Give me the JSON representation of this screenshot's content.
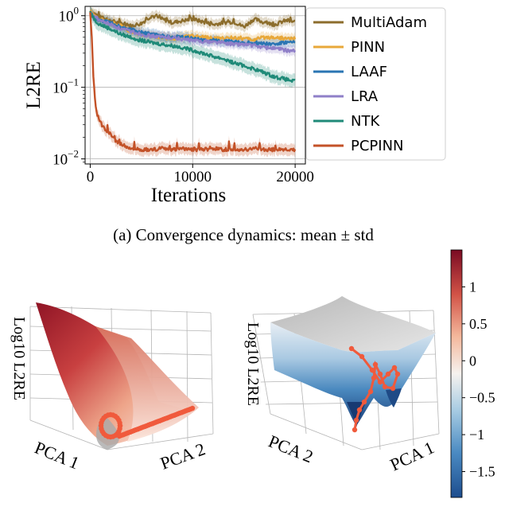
{
  "chart_data": [
    {
      "type": "line",
      "ylabel": "L2RE",
      "xlabel": "Iterations",
      "yscale": "log",
      "xlim": [
        -500,
        21000
      ],
      "ylim": [
        0.0085,
        1.35
      ],
      "xticks": [
        0,
        10000,
        20000
      ],
      "xtick_labels": [
        "0",
        "10000",
        "20000"
      ],
      "ytick_labels": [
        {
          "base": "10",
          "exp": "0",
          "value": 1
        },
        {
          "base": "10",
          "exp": "−1",
          "value": 0.1
        },
        {
          "base": "10",
          "exp": "−2",
          "value": 0.01
        }
      ],
      "grid": true,
      "legend_position": "outside-right",
      "shaded_band": "mean ± std",
      "series": [
        {
          "name": "MultiAdam",
          "color": "#8c6d2c",
          "x": [
            0,
            500,
            1000,
            2000,
            3000,
            4000,
            5000,
            6000,
            7000,
            8000,
            9000,
            10000,
            11000,
            12000,
            13000,
            14000,
            15000,
            16000,
            17000,
            18000,
            19000,
            20000
          ],
          "y": [
            1.15,
            1.05,
            0.95,
            0.85,
            0.78,
            0.72,
            0.78,
            1.0,
            0.9,
            0.8,
            0.85,
            0.9,
            0.82,
            0.75,
            0.8,
            0.82,
            0.7,
            0.9,
            0.8,
            0.75,
            0.85,
            0.82
          ]
        },
        {
          "name": "PINN",
          "color": "#e8a83a",
          "x": [
            0,
            500,
            1000,
            2000,
            3000,
            4000,
            5000,
            6000,
            7000,
            8000,
            9000,
            10000,
            11000,
            12000,
            13000,
            14000,
            15000,
            16000,
            17000,
            18000,
            19000,
            20000
          ],
          "y": [
            1.15,
            0.95,
            0.88,
            0.82,
            0.72,
            0.6,
            0.55,
            0.52,
            0.5,
            0.48,
            0.5,
            0.52,
            0.5,
            0.48,
            0.48,
            0.5,
            0.48,
            0.46,
            0.5,
            0.5,
            0.48,
            0.48
          ]
        },
        {
          "name": "LAAF",
          "color": "#2a75b3",
          "x": [
            0,
            500,
            1000,
            2000,
            3000,
            4000,
            5000,
            6000,
            7000,
            8000,
            9000,
            10000,
            11000,
            12000,
            13000,
            14000,
            15000,
            16000,
            17000,
            18000,
            19000,
            20000
          ],
          "y": [
            1.12,
            0.9,
            0.85,
            0.8,
            0.7,
            0.65,
            0.58,
            0.55,
            0.52,
            0.5,
            0.5,
            0.48,
            0.46,
            0.45,
            0.44,
            0.43,
            0.42,
            0.42,
            0.41,
            0.4,
            0.42,
            0.42
          ]
        },
        {
          "name": "LRA",
          "color": "#8f7fc8",
          "x": [
            0,
            500,
            1000,
            2000,
            3000,
            4000,
            5000,
            6000,
            7000,
            8000,
            9000,
            10000,
            11000,
            12000,
            13000,
            14000,
            15000,
            16000,
            17000,
            18000,
            19000,
            20000
          ],
          "y": [
            1.1,
            0.95,
            0.85,
            0.75,
            0.65,
            0.6,
            0.55,
            0.52,
            0.5,
            0.5,
            0.47,
            0.45,
            0.44,
            0.43,
            0.42,
            0.4,
            0.4,
            0.38,
            0.36,
            0.35,
            0.33,
            0.32
          ]
        },
        {
          "name": "NTK",
          "color": "#1f8a78",
          "x": [
            0,
            500,
            1000,
            2000,
            3000,
            4000,
            5000,
            6000,
            7000,
            8000,
            9000,
            10000,
            11000,
            12000,
            13000,
            14000,
            15000,
            16000,
            17000,
            18000,
            19000,
            20000
          ],
          "y": [
            1.15,
            0.85,
            0.75,
            0.65,
            0.55,
            0.5,
            0.45,
            0.42,
            0.4,
            0.38,
            0.36,
            0.33,
            0.3,
            0.27,
            0.25,
            0.22,
            0.2,
            0.18,
            0.16,
            0.14,
            0.13,
            0.12
          ]
        },
        {
          "name": "PCPINN",
          "color": "#c35228",
          "x": [
            0,
            150,
            300,
            500,
            700,
            1000,
            1300,
            1600,
            2000,
            2500,
            3000,
            4000,
            5000,
            6000,
            7000,
            8000,
            9000,
            10000,
            11000,
            12000,
            13000,
            14000,
            15000,
            16000,
            17000,
            18000,
            19000,
            20000
          ],
          "y": [
            1.1,
            0.5,
            0.15,
            0.06,
            0.04,
            0.032,
            0.028,
            0.025,
            0.022,
            0.018,
            0.016,
            0.014,
            0.0135,
            0.0135,
            0.014,
            0.0135,
            0.014,
            0.0135,
            0.0135,
            0.014,
            0.0135,
            0.0135,
            0.0135,
            0.014,
            0.0135,
            0.0135,
            0.0135,
            0.0135
          ]
        }
      ]
    },
    {
      "type": "surface",
      "zlabel": "Log10 L2RE",
      "xlabel": "PCA 1",
      "ylabel": "PCA 2",
      "colormap": "Reds",
      "grid": true
    },
    {
      "type": "surface",
      "zlabel": "Log10 L2RE",
      "xlabel": "PCA 2",
      "ylabel": "PCA 1",
      "colormap": "RdBu_r",
      "grid": true
    }
  ],
  "caption": "(a) Convergence dynamics: mean ± std",
  "colorbar": {
    "min": -1.85,
    "max": 1.5,
    "ticks": [
      1,
      0.5,
      0,
      -0.5,
      -1,
      -1.5
    ],
    "tick_labels": [
      "1",
      "0.5",
      "0",
      "−0.5",
      "−1",
      "−1.5"
    ]
  },
  "colors": {
    "trajectory": "#f05a3c",
    "grid": "#b0b0b0",
    "band_alpha": 0.25
  }
}
